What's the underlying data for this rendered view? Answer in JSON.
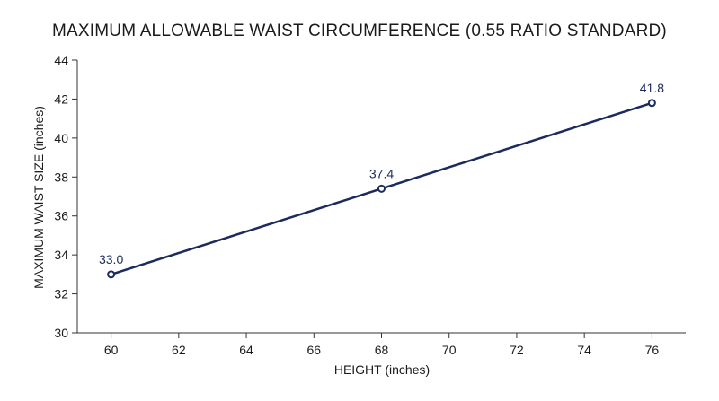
{
  "chart_data": {
    "type": "line",
    "title": "MAXIMUM ALLOWABLE WAIST CIRCUMFERENCE (0.55 RATIO STANDARD)",
    "xlabel": "HEIGHT (inches)",
    "ylabel": "MAXIMUM WAIST SIZE (inches)",
    "xlim": [
      59,
      77
    ],
    "ylim": [
      30,
      44
    ],
    "xticks": [
      60,
      62,
      64,
      66,
      68,
      70,
      72,
      74,
      76
    ],
    "yticks": [
      30,
      32,
      34,
      36,
      38,
      40,
      42,
      44
    ],
    "grid": false,
    "series": [
      {
        "x": [
          60,
          68,
          76
        ],
        "values": [
          33.0,
          37.4,
          41.8
        ],
        "labels": [
          "33.0",
          "37.4",
          "41.8"
        ]
      }
    ],
    "colors": {
      "line": "#1c2b5e",
      "marker_fill": "#ffffff",
      "axis": "#333333"
    }
  }
}
